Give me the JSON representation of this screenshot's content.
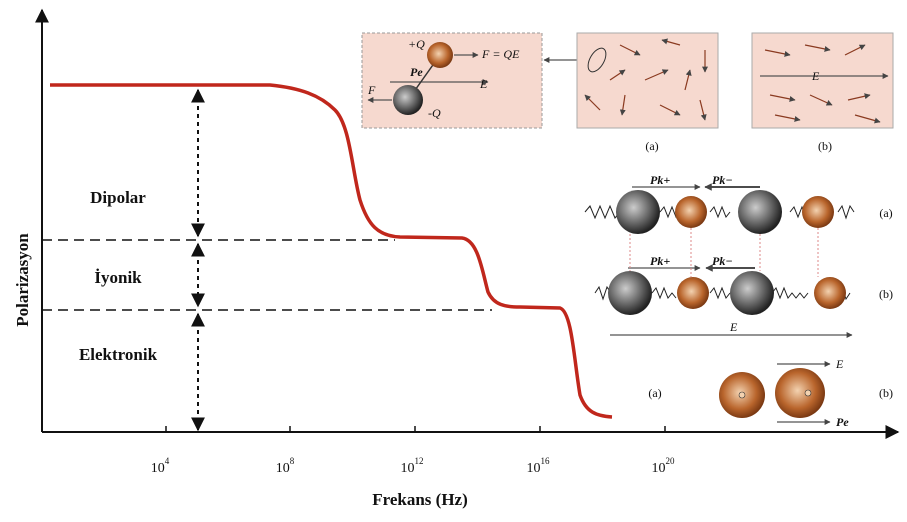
{
  "axes": {
    "y_label": "Polarizasyon",
    "x_label": "Frekans (Hz)",
    "x_ticks": [
      {
        "base": "10",
        "exp": "4"
      },
      {
        "base": "10",
        "exp": "8"
      },
      {
        "base": "10",
        "exp": "12"
      },
      {
        "base": "10",
        "exp": "16"
      },
      {
        "base": "10",
        "exp": "20"
      }
    ]
  },
  "regions": [
    "Dipolar",
    "İyonik",
    "Elektronik"
  ],
  "dipole": {
    "plus_q": "+Q",
    "minus_q": "-Q",
    "force": "F = QE",
    "f": "F",
    "e": "E",
    "pe": "Pe"
  },
  "orientation": {
    "e": "E",
    "a": "(a)",
    "b": "(b)"
  },
  "ionic": {
    "pk_plus": "Pk+",
    "pk_minus": "Pk−",
    "e": "E",
    "a": "(a)",
    "b": "(b)"
  },
  "electronic": {
    "e": "E",
    "pe": "Pe",
    "a": "(a)",
    "b": "(b)"
  }
}
